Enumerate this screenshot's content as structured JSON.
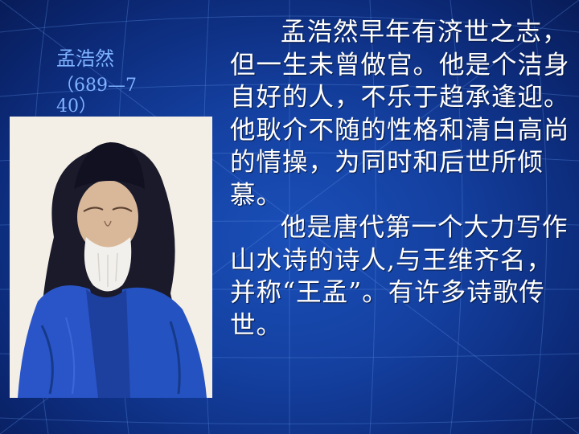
{
  "slide": {
    "name": "孟浩然",
    "years": "（689—740）",
    "paragraphs": [
      "孟浩然早年有济世之志，但一生未曾做官。他是个洁身自好的人，不乐于趋承逢迎。他耿介不随的性格和清白高尚的情操，为同时和后世所倾慕。",
      "他是唐代第一个大力写作山水诗的诗人,与王维齐名，并称“王孟”。有许多诗歌传世。"
    ]
  },
  "colors": {
    "background": "#1440a0",
    "label": "#7fb3ff",
    "text": "#ffffff"
  }
}
